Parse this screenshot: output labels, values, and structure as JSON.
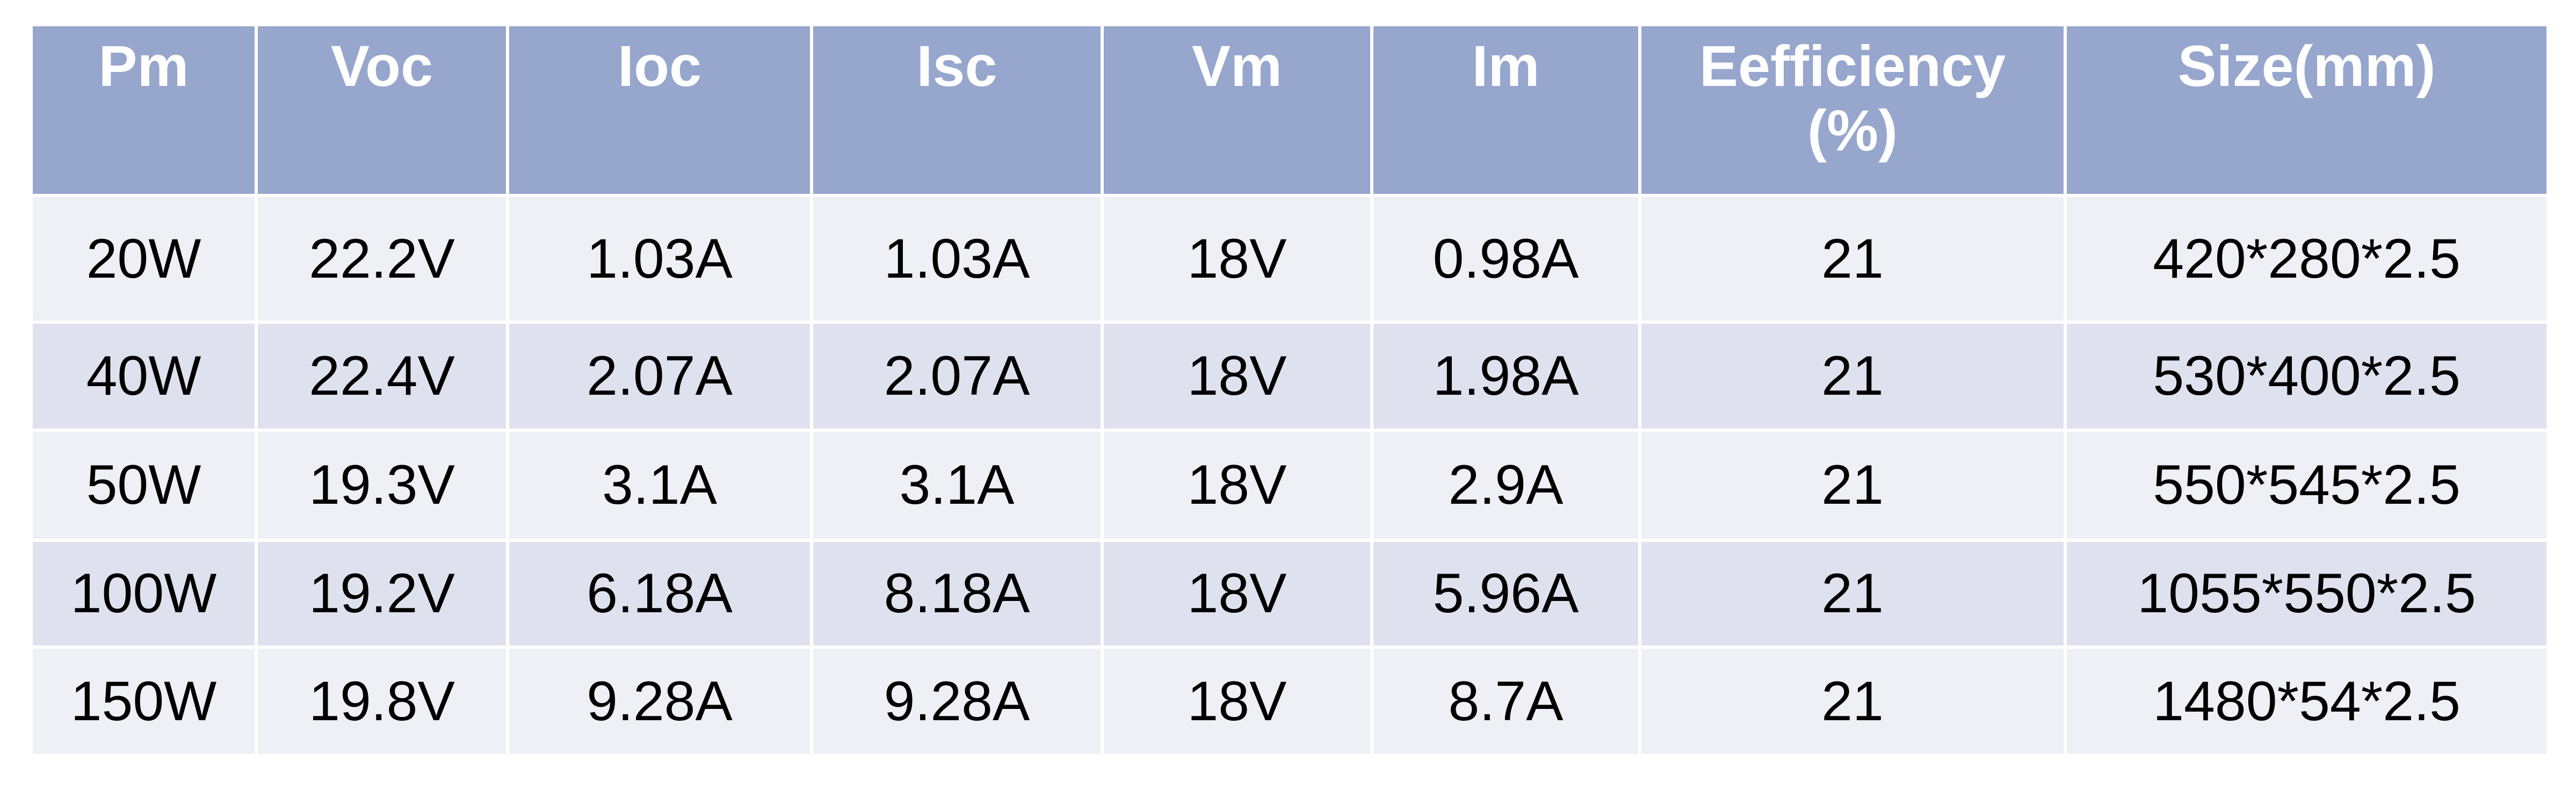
{
  "table": {
    "header": [
      "Pm",
      "Voc",
      "Ioc",
      "Isc",
      "Vm",
      "Im",
      "Eefficiency (%)",
      "Size(mm)"
    ],
    "rows": [
      [
        "20W",
        "22.2V",
        "1.03A",
        "1.03A",
        "18V",
        "0.98A",
        "21",
        "420*280*2.5"
      ],
      [
        "40W",
        "22.4V",
        "2.07A",
        "2.07A",
        "18V",
        "1.98A",
        "21",
        "530*400*2.5"
      ],
      [
        "50W",
        "19.3V",
        "3.1A",
        "3.1A",
        "18V",
        "2.9A",
        "21",
        "550*545*2.5"
      ],
      [
        "100W",
        "19.2V",
        "6.18A",
        "8.18A",
        "18V",
        "5.96A",
        "21",
        "1055*550*2.5"
      ],
      [
        "150W",
        "19.8V",
        "9.28A",
        "9.28A",
        "18V",
        "8.7A",
        "21",
        "1480*54*2.5"
      ]
    ]
  }
}
